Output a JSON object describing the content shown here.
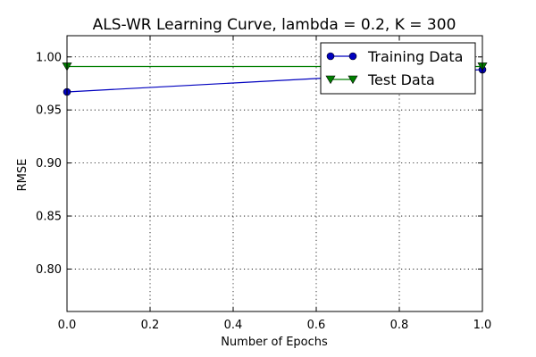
{
  "chart_data": {
    "type": "line",
    "title": "ALS-WR Learning Curve, lambda = 0.2, K = 300",
    "xlabel": "Number of Epochs",
    "ylabel": "RMSE",
    "xlim": [
      0.0,
      1.0
    ],
    "ylim": [
      0.76,
      1.02
    ],
    "xticks": [
      "0.0",
      "0.2",
      "0.4",
      "0.6",
      "0.8",
      "1.0"
    ],
    "yticks": [
      "0.80",
      "0.85",
      "0.90",
      "0.95",
      "1.00"
    ],
    "grid": true,
    "legend_position": "top-right",
    "series": [
      {
        "name": "Training Data",
        "color": "#0000bf",
        "marker": "circle",
        "x": [
          0.0,
          1.0
        ],
        "y": [
          0.967,
          0.988
        ]
      },
      {
        "name": "Test Data",
        "color": "#007f00",
        "marker": "triangle-down",
        "x": [
          0.0,
          1.0
        ],
        "y": [
          0.991,
          0.991
        ]
      }
    ]
  }
}
